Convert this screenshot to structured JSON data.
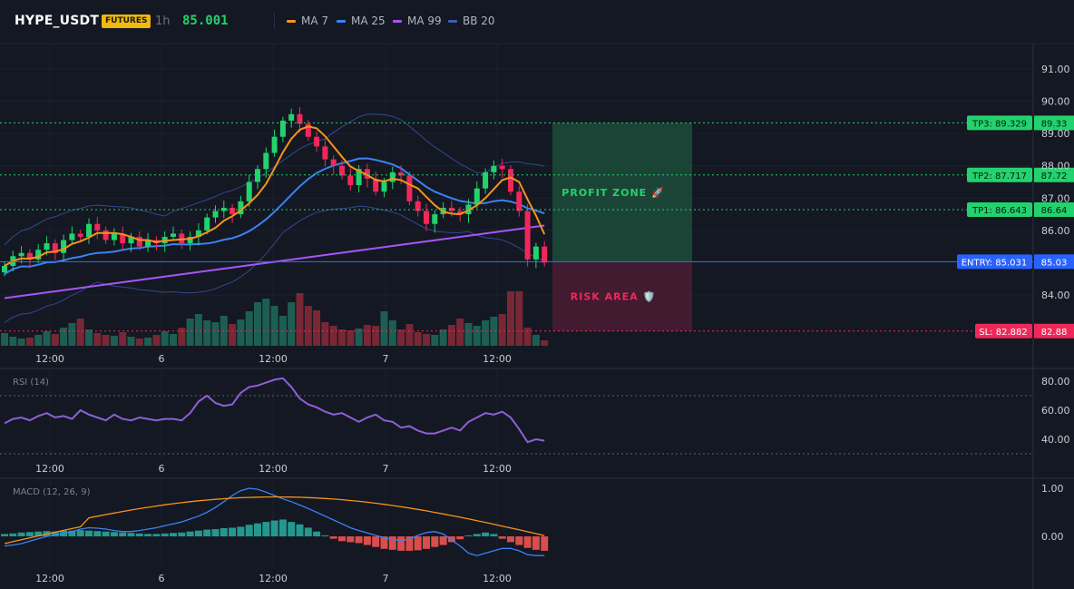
{
  "header": {
    "symbol": "HYPE_USDT",
    "market_badge": "FUTURES",
    "timeframe": "1h",
    "last_price": "85.001"
  },
  "legend": [
    {
      "label": "MA 7",
      "color": "#f7931a"
    },
    {
      "label": "MA 25",
      "color": "#3b82f6"
    },
    {
      "label": "MA 99",
      "color": "#a855f7"
    },
    {
      "label": "BB 20",
      "color": "#3f5fb0"
    }
  ],
  "colors": {
    "up": "#26a69a",
    "up_candle": "#22d36d",
    "down": "#f23645",
    "down_candle": "#f0285a",
    "tp": "#22d36d",
    "entry": "#2962ff",
    "sl": "#f0285a",
    "profit_zone": "#1b4d3a",
    "risk_zone": "#4a1c33",
    "rsi": "#8e5fd8",
    "macd_line": "#3b82f6",
    "signal_line": "#f7931a"
  },
  "levels": {
    "tp3": {
      "label": "TP3: 89.329",
      "axis": "89.33",
      "value": 89.329
    },
    "tp2": {
      "label": "TP2: 87.717",
      "axis": "87.72",
      "value": 87.717
    },
    "tp1": {
      "label": "TP1: 86.643",
      "axis": "86.64",
      "value": 86.643
    },
    "entry": {
      "label": "ENTRY: 85.031",
      "axis": "85.03",
      "value": 85.031
    },
    "sl": {
      "label": "SL: 82.882",
      "axis": "82.88",
      "value": 82.882
    }
  },
  "zones": {
    "profit": "PROFIT ZONE 🚀",
    "risk": "RISK AREA 🛡️"
  },
  "price_axis": {
    "ticks": [
      "91.00",
      "90.00",
      "89.00",
      "88.00",
      "87.00",
      "86.00",
      "84.00"
    ],
    "min": 82.3,
    "max": 91.4
  },
  "time_axis": [
    "12:00",
    "6",
    "12:00",
    "7",
    "12:00"
  ],
  "rsi_panel": {
    "label": "RSI (14)",
    "ticks": [
      "80.00",
      "60.00",
      "40.00"
    ],
    "overbought": 70,
    "oversold": 30
  },
  "macd_panel": {
    "label": "MACD (12, 26, 9)",
    "ticks": [
      "1.00",
      "0.00"
    ]
  },
  "chart_data": {
    "type": "candlestick",
    "closes": [
      84.9,
      85.2,
      85.3,
      85.1,
      85.4,
      85.6,
      85.3,
      85.7,
      85.9,
      85.8,
      86.2,
      86.0,
      85.7,
      85.9,
      85.6,
      85.8,
      85.5,
      85.7,
      85.6,
      85.8,
      85.9,
      85.6,
      85.8,
      86.0,
      86.4,
      86.6,
      86.7,
      86.5,
      86.9,
      87.5,
      87.9,
      88.4,
      88.9,
      89.4,
      89.6,
      89.3,
      88.9,
      88.6,
      88.2,
      88.0,
      87.7,
      87.4,
      87.9,
      87.6,
      87.2,
      87.5,
      87.8,
      87.7,
      86.9,
      86.6,
      86.2,
      86.5,
      86.7,
      86.6,
      86.5,
      86.8,
      87.3,
      87.8,
      88.0,
      87.9,
      87.2,
      86.6,
      85.1,
      85.5,
      85.0
    ],
    "opens": [
      84.7,
      84.9,
      85.2,
      85.3,
      85.1,
      85.4,
      85.6,
      85.3,
      85.7,
      85.9,
      85.8,
      86.2,
      86.0,
      85.7,
      85.9,
      85.6,
      85.8,
      85.5,
      85.7,
      85.6,
      85.8,
      85.9,
      85.6,
      85.8,
      86.0,
      86.4,
      86.6,
      86.7,
      86.5,
      86.9,
      87.5,
      87.9,
      88.4,
      88.9,
      89.4,
      89.6,
      89.3,
      88.9,
      88.6,
      88.2,
      88.0,
      87.7,
      87.4,
      87.9,
      87.6,
      87.2,
      87.5,
      87.8,
      87.7,
      86.9,
      86.6,
      86.2,
      86.5,
      86.7,
      86.6,
      86.5,
      86.8,
      87.3,
      87.8,
      88.0,
      87.9,
      87.2,
      86.6,
      85.1,
      85.5
    ]
  }
}
